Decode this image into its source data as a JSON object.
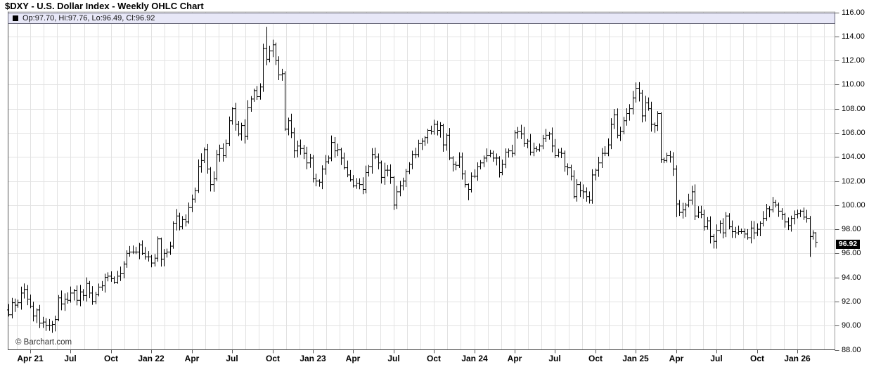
{
  "legend": {
    "ohlc_text": "Op:97.70, Hi:97.76, Lo:96.49, Cl:96.92"
  },
  "watermark": "© Barchart.com",
  "last_price_label": "96.92",
  "colors": {
    "bars": "#000000",
    "grid": "#e2e2e2",
    "legend_bg": "#e7e7f7",
    "axis_dark": "#555555",
    "axis_light": "#999999",
    "price_label_bg": "#000000",
    "price_label_fg": "#ffffff"
  },
  "chart_data": {
    "type": "ohlc",
    "title": "$DXY - U.S. Dollar Index - Weekly OHLC Chart",
    "frequency": "weekly",
    "legend_last_bar_text": "Op:97.70, Hi:97.76, Lo:96.49, Cl:96.92",
    "y_axis": {
      "side": "right",
      "min": 88,
      "max": 116,
      "step": 2,
      "tick_labels": [
        "116.00",
        "114.00",
        "112.00",
        "110.00",
        "108.00",
        "106.00",
        "104.00",
        "102.00",
        "100.00",
        "98.00",
        "96.00",
        "94.00",
        "92.00",
        "90.00",
        "88.00"
      ]
    },
    "x_axis": {
      "tick_labels": [
        "Apr 21",
        "Jul",
        "Oct",
        "Jan 22",
        "Apr",
        "Jul",
        "Oct",
        "Jan 23",
        "Apr",
        "Jul",
        "Oct",
        "Jan 24",
        "Apr",
        "Jul",
        "Oct",
        "Jan 25",
        "Apr",
        "Jul",
        "Oct",
        "Jan 26"
      ],
      "tick_bar_indices": [
        7,
        20,
        33,
        46,
        59,
        72,
        85,
        98,
        111,
        124,
        137,
        150,
        163,
        176,
        189,
        202,
        215,
        228,
        241,
        254
      ],
      "grid": "monthly"
    },
    "weekly_closes": [
      90.9,
      91.9,
      91.7,
      91.9,
      92.7,
      93.0,
      92.2,
      91.6,
      90.8,
      91.3,
      90.2,
      90.3,
      90.0,
      90.0,
      90.1,
      90.5,
      92.3,
      91.8,
      92.2,
      92.1,
      92.7,
      92.9,
      92.1,
      92.8,
      92.5,
      93.5,
      92.7,
      92.0,
      92.6,
      93.2,
      93.3,
      94.0,
      94.1,
      93.9,
      93.6,
      94.1,
      94.3,
      95.1,
      96.0,
      96.1,
      96.1,
      96.1,
      96.7,
      96.0,
      95.7,
      95.7,
      95.2,
      95.6,
      97.2,
      95.5,
      96.0,
      96.1,
      96.6,
      98.5,
      99.1,
      98.2,
      98.8,
      98.6,
      99.8,
      100.5,
      101.2,
      103.2,
      103.7,
      104.6,
      103.0,
      101.7,
      102.2,
      104.2,
      104.7,
      104.1,
      105.1,
      107.0,
      108.0,
      106.7,
      105.9,
      106.6,
      105.7,
      108.1,
      108.8,
      109.5,
      109.0,
      109.8,
      113.0,
      112.1,
      112.8,
      113.3,
      112.0,
      110.8,
      110.9,
      106.3,
      107.0,
      106.0,
      104.5,
      104.9,
      104.7,
      104.3,
      103.5,
      103.9,
      102.2,
      102.0,
      101.9,
      103.0,
      103.6,
      103.9,
      105.2,
      104.5,
      104.6,
      103.9,
      103.1,
      102.5,
      102.1,
      101.6,
      101.8,
      101.7,
      101.3,
      102.7,
      103.2,
      104.2,
      104.0,
      103.5,
      102.3,
      102.9,
      102.9,
      102.3,
      100.0,
      101.1,
      101.6,
      102.0,
      102.8,
      103.4,
      104.2,
      104.2,
      105.1,
      105.3,
      105.6,
      106.2,
      106.1,
      106.7,
      106.2,
      106.6,
      105.0,
      105.8,
      103.9,
      103.4,
      103.3,
      104.0,
      102.6,
      101.7,
      101.3,
      102.4,
      102.4,
      103.2,
      103.5,
      103.9,
      104.1,
      104.3,
      103.9,
      103.9,
      102.7,
      103.4,
      104.4,
      104.5,
      104.3,
      106.0,
      106.1,
      105.9,
      105.1,
      105.3,
      104.4,
      104.7,
      104.6,
      104.9,
      105.5,
      105.8,
      105.9,
      104.9,
      104.1,
      104.4,
      104.3,
      103.2,
      103.1,
      102.4,
      100.7,
      101.7,
      101.2,
      101.1,
      100.7,
      100.4,
      102.5,
      102.9,
      103.5,
      104.3,
      104.3,
      105.0,
      106.7,
      107.5,
      105.8,
      106.1,
      107.0,
      107.6,
      108.0,
      108.9,
      109.7,
      109.3,
      107.4,
      108.5,
      108.0,
      106.7,
      106.6,
      107.6,
      103.8,
      103.7,
      104.1,
      104.0,
      103.0,
      100.1,
      99.4,
      99.6,
      100.0,
      100.4,
      101.1,
      99.1,
      99.4,
      99.2,
      98.2,
      98.7,
      97.4,
      97.0,
      97.9,
      98.5,
      97.7,
      99.1,
      98.2,
      97.8,
      97.7,
      97.8,
      97.8,
      97.6,
      97.3,
      98.1,
      97.7,
      98.0,
      98.5,
      98.9,
      99.7,
      99.6,
      100.2,
      100.0,
      99.5,
      99.2,
      98.6,
      98.3,
      98.9,
      99.2,
      99.3,
      99.5,
      99.0,
      98.9,
      97.4,
      97.7,
      96.92
    ],
    "bar_overrides": {
      "48": [
        95.6,
        97.4,
        95.3,
        97.2
      ],
      "49": [
        97.2,
        97.3,
        94.9,
        95.5
      ],
      "82": [
        109.8,
        113.4,
        109.4,
        113.0
      ],
      "83": [
        113.0,
        114.8,
        111.6,
        112.1
      ],
      "124": [
        102.3,
        102.4,
        99.6,
        100.0
      ],
      "148": [
        101.7,
        101.8,
        100.4,
        101.3
      ],
      "203": [
        109.7,
        110.2,
        108.6,
        109.3
      ],
      "210": [
        107.6,
        107.7,
        103.5,
        103.8
      ],
      "215": [
        103.0,
        103.3,
        99.0,
        100.1
      ],
      "227": [
        97.4,
        97.6,
        96.4,
        97.0
      ],
      "258": [
        98.9,
        99.1,
        95.7,
        97.4
      ],
      "260": [
        97.7,
        97.76,
        96.49,
        96.92
      ]
    },
    "last_bar": {
      "open": 97.7,
      "high": 97.76,
      "low": 96.49,
      "close": 96.92
    },
    "wick": {
      "base": 0.12,
      "var": 0.5
    }
  }
}
